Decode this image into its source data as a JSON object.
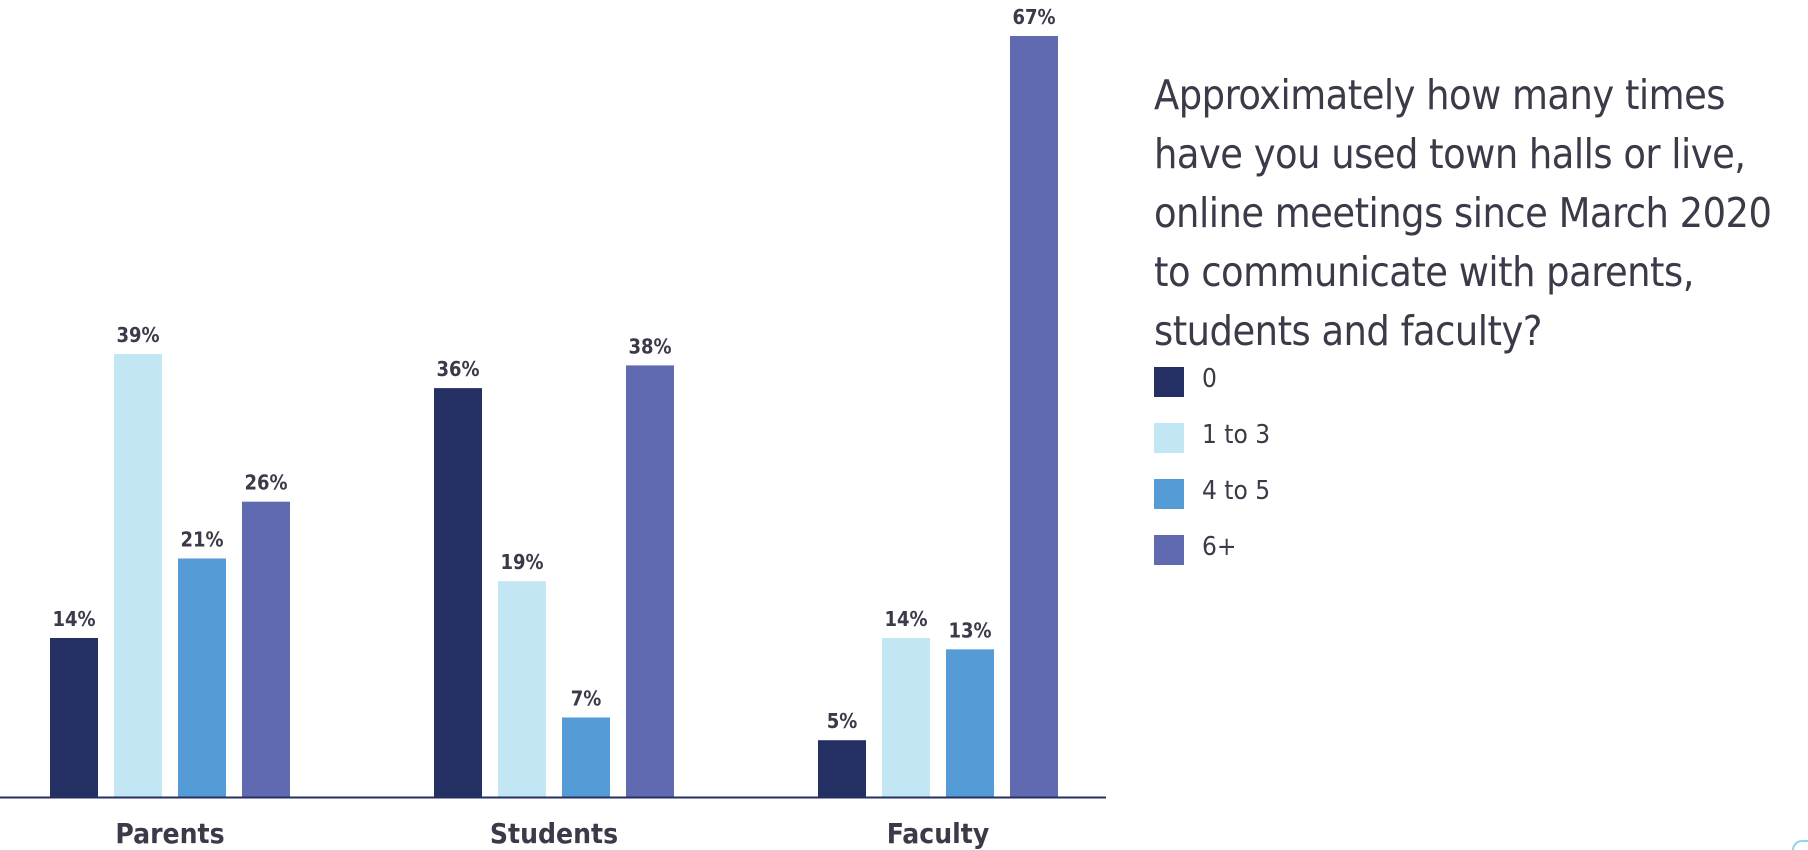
{
  "question": "Approximately how many times have you used town halls or live, online meetings since March 2020 to communicate with parents, students and faculty?",
  "chart_data": {
    "type": "bar",
    "categories": [
      "Parents",
      "Students",
      "Faculty"
    ],
    "series": [
      {
        "name": "0",
        "color": "#243063",
        "values": [
          14,
          36,
          5
        ]
      },
      {
        "name": "1 to 3",
        "color": "#c3e6f5",
        "values": [
          39,
          19,
          14
        ]
      },
      {
        "name": "4 to 5",
        "color": "#559bd5",
        "values": [
          21,
          7,
          13
        ]
      },
      {
        "name": "6+",
        "color": "#5f6ab0",
        "values": [
          26,
          38,
          67
        ]
      }
    ],
    "value_suffix": "%",
    "ylim": [
      0,
      67
    ],
    "grid": false,
    "legend_position": "right",
    "colors": {
      "axis": "#243063",
      "label": "#3a3a48"
    }
  }
}
